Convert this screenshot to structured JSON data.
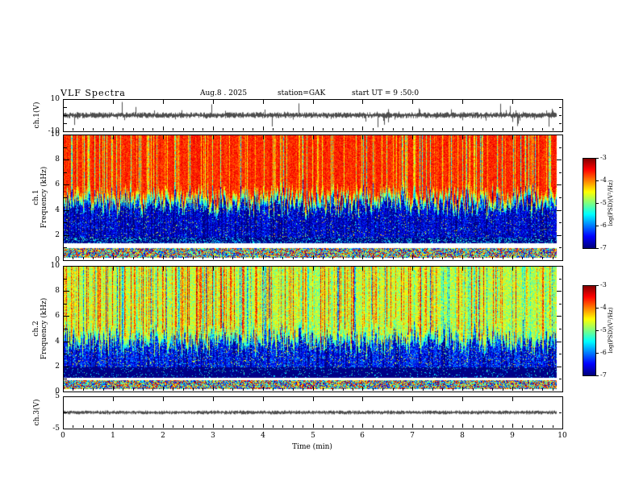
{
  "header": {
    "title": "VLF Spectra",
    "date": "Aug.8 . 2025",
    "station": "station=GAK",
    "start_ut": "start UT = 9 :50:0"
  },
  "xaxis": {
    "label": "Time (min)",
    "lim": [
      0,
      10
    ],
    "ticks": [
      0,
      1,
      2,
      3,
      4,
      5,
      6,
      7,
      8,
      9,
      10
    ],
    "data_end_min": 9.88
  },
  "chart_data": [
    {
      "id": "ch1_waveform",
      "type": "line",
      "ylabel": "ch.1(V)",
      "ylim": [
        -10,
        10
      ],
      "yticks": [
        10,
        -10
      ],
      "xlim": [
        0,
        10
      ],
      "baseline_v": 0,
      "typical_amplitude_v": 2,
      "spike_amplitude_v": 9,
      "description": "Dense broadband noise waveform centered on 0 V with impulsive spikes to about ±9 V throughout the 0–9.88 min record"
    },
    {
      "id": "ch1_spectrogram",
      "type": "heatmap",
      "ylabel_channel": "ch.1",
      "ylabel": "Frequency (kHz)",
      "ylim": [
        0,
        10
      ],
      "yticks": [
        10,
        8,
        6,
        4,
        2,
        0
      ],
      "xlim": [
        0,
        10
      ],
      "zlabel": "log(PSD)(V²/Hz)",
      "zlim": [
        -7,
        -3
      ],
      "zticks": [
        -3,
        -4,
        -5,
        -6,
        -7
      ],
      "bands": [
        {
          "freq_khz": [
            5,
            10
          ],
          "psd_log": -3.4,
          "appearance": "intense red broadband hiss with orange/yellow vertical striations"
        },
        {
          "freq_khz": [
            4,
            5.5
          ],
          "psd_log": -5.0,
          "appearance": "fluctuating green/cyan transition boundary near 4–5.5 kHz"
        },
        {
          "freq_khz": [
            1.4,
            4
          ],
          "psd_log": -6.3,
          "appearance": "blue low-power region crossed by many dark dropout stripes"
        },
        {
          "freq_khz": [
            0.25,
            1.0
          ],
          "psd_log": -5.0,
          "appearance": "thin mixed-color band separated from the main panel by a white gap"
        }
      ]
    },
    {
      "id": "ch2_spectrogram",
      "type": "heatmap",
      "ylabel_channel": "ch.2",
      "ylabel": "Frequency (kHz)",
      "ylim": [
        0,
        10
      ],
      "yticks": [
        10,
        8,
        6,
        4,
        2,
        0
      ],
      "xlim": [
        0,
        10
      ],
      "zlabel": "log(PSD)(V²/Hz)",
      "zlim": [
        -7,
        -3
      ],
      "zticks": [
        -3,
        -4,
        -5,
        -6,
        -7
      ],
      "bands": [
        {
          "freq_khz": [
            4.5,
            10
          ],
          "psd_log": -4.5,
          "appearance": "green-yellow hiss with intermittent red high-power columns"
        },
        {
          "freq_khz": [
            2,
            4.5
          ],
          "psd_log": -6.0,
          "appearance": "blue low-power region with dark vertical dropouts"
        },
        {
          "freq_khz": [
            1.1,
            2
          ],
          "psd_log": -7.0,
          "appearance": "nearly black quiet band"
        },
        {
          "freq_khz": [
            0.25,
            0.95
          ],
          "psd_log": -5.0,
          "appearance": "thin mixed-color band above a white gap at the baseline"
        }
      ]
    },
    {
      "id": "ch3_waveform",
      "type": "line",
      "ylabel": "ch.3(V)",
      "ylim": [
        -5,
        5
      ],
      "yticks": [
        5,
        -5
      ],
      "xlim": [
        0,
        10
      ],
      "baseline_v": 0,
      "typical_amplitude_v": 0.4,
      "description": "Flat quiescent trace at 0 V across the entire record"
    }
  ]
}
